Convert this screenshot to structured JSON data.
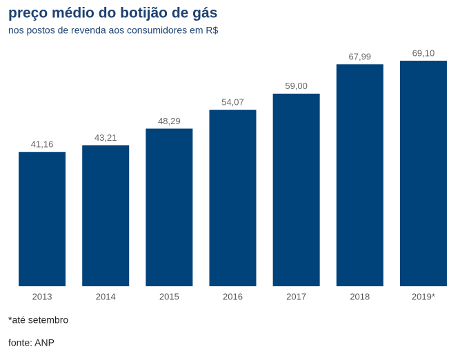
{
  "chart_data": {
    "type": "bar",
    "title": "preço médio do botijão de gás",
    "subtitle": "nos postos de revenda aos consumidores em R$",
    "categories": [
      "2013",
      "2014",
      "2015",
      "2016",
      "2017",
      "2018",
      "2019*"
    ],
    "values": [
      41.16,
      43.21,
      48.29,
      54.07,
      59.0,
      67.99,
      69.1
    ],
    "value_labels": [
      "41,16",
      "43,21",
      "48,29",
      "54,07",
      "59,00",
      "67,99",
      "69,10"
    ],
    "color": "#00427a",
    "notes": [
      "*até setembro",
      "fonte: ANP"
    ]
  }
}
